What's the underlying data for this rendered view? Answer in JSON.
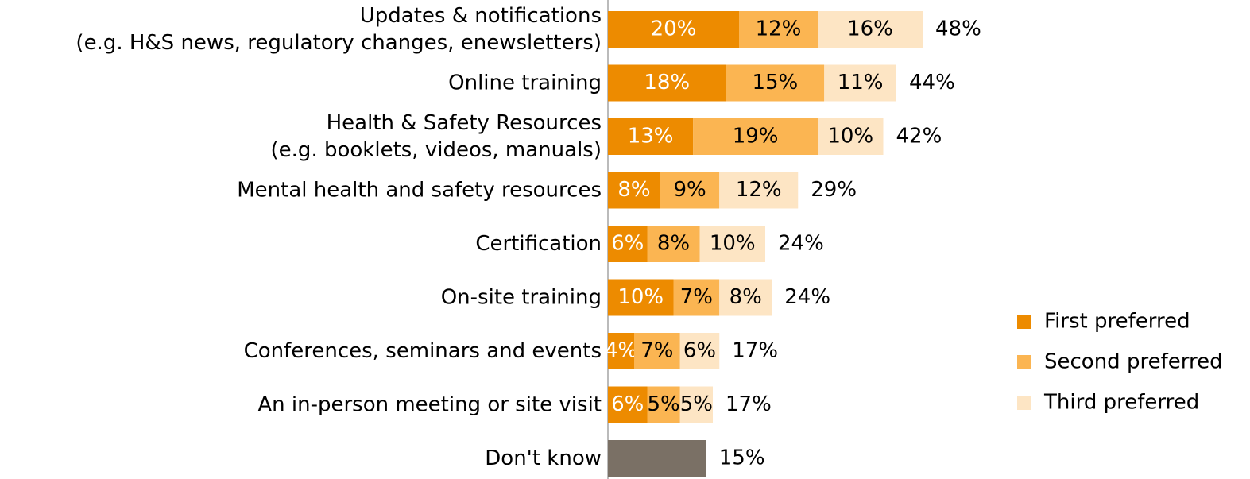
{
  "chart_data": {
    "type": "stacked-bar-horizontal",
    "categories": [
      "Updates & notifications\n(e.g. H&S news, regulatory changes, enewsletters)",
      "Online training",
      "Health & Safety Resources\n(e.g. booklets, videos, manuals)",
      "Mental health and safety resources",
      "Certification",
      "On-site training",
      "Conferences, seminars and events",
      "An in-person meeting or site visit",
      "Don't know"
    ],
    "series": [
      {
        "name": "First preferred",
        "color": "#ed8b00",
        "label_color": "#ffffff",
        "values": [
          20,
          18,
          13,
          8,
          6,
          10,
          4,
          6,
          null
        ],
        "value_labels": [
          "20%",
          "18%",
          "13%",
          "8%",
          "6%",
          "10%",
          "4%",
          "6%",
          null
        ]
      },
      {
        "name": "Second preferred",
        "color": "#fbb552",
        "label_color": "#000000",
        "values": [
          12,
          15,
          19,
          9,
          8,
          7,
          7,
          5,
          null
        ],
        "value_labels": [
          "12%",
          "15%",
          "19%",
          "9%",
          "8%",
          "7%",
          "7%",
          "5%",
          null
        ]
      },
      {
        "name": "Third preferred",
        "color": "#fde5c4",
        "label_color": "#000000",
        "values": [
          16,
          11,
          10,
          12,
          10,
          8,
          6,
          5,
          null
        ],
        "value_labels": [
          "16%",
          "11%",
          "10%",
          "12%",
          "10%",
          "8%",
          "6%",
          "5%",
          null
        ]
      },
      {
        "color": "#7a7065",
        "values": [
          null,
          null,
          null,
          null,
          null,
          null,
          null,
          null,
          15
        ]
      }
    ],
    "totals": [
      48,
      44,
      42,
      29,
      24,
      24,
      17,
      17,
      15
    ],
    "totals_labels": [
      "48%",
      "44%",
      "42%",
      "29%",
      "24%",
      "24%",
      "17%",
      "17%",
      "15%"
    ],
    "xlim": [
      0,
      60
    ],
    "legend": "right"
  }
}
